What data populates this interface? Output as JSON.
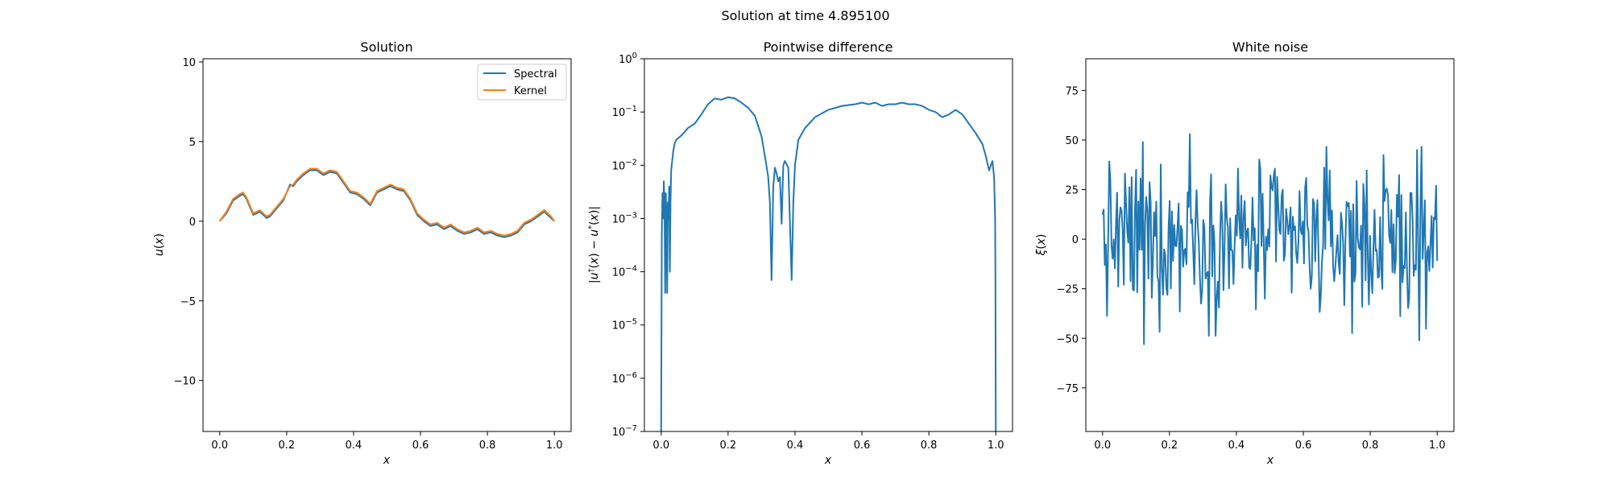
{
  "figure": {
    "suptitle": "Solution at time 4.895100"
  },
  "colors": {
    "spectral": "#1f77b4",
    "kernel": "#ff7f0e",
    "noise": "#1f77b4",
    "difference": "#1f77b4"
  },
  "chart_data": [
    {
      "type": "line",
      "title": "Solution",
      "xlabel": "x",
      "ylabel": "u(x)",
      "xlim": [
        -0.05,
        1.05
      ],
      "ylim": [
        -13.2,
        10.2
      ],
      "xticks": [
        0.0,
        0.2,
        0.4,
        0.6,
        0.8,
        1.0
      ],
      "xtick_labels": [
        "0.0",
        "0.2",
        "0.4",
        "0.6",
        "0.8",
        "1.0"
      ],
      "yticks": [
        -10,
        -5,
        0,
        5,
        10
      ],
      "ytick_labels": [
        "−10",
        "−5",
        "0",
        "5",
        "10"
      ],
      "legend": {
        "placement": "top-right",
        "entries": [
          "Spectral",
          "Kernel"
        ]
      },
      "x": [
        0.0,
        0.02,
        0.04,
        0.06,
        0.07,
        0.08,
        0.09,
        0.1,
        0.12,
        0.14,
        0.15,
        0.17,
        0.19,
        0.21,
        0.22,
        0.23,
        0.25,
        0.27,
        0.29,
        0.31,
        0.33,
        0.35,
        0.37,
        0.39,
        0.41,
        0.43,
        0.45,
        0.47,
        0.49,
        0.51,
        0.53,
        0.55,
        0.57,
        0.59,
        0.61,
        0.63,
        0.65,
        0.67,
        0.69,
        0.71,
        0.73,
        0.75,
        0.77,
        0.79,
        0.81,
        0.83,
        0.85,
        0.87,
        0.89,
        0.91,
        0.93,
        0.95,
        0.97,
        0.99,
        1.0
      ],
      "series": [
        {
          "name": "Spectral",
          "values": [
            0.0,
            0.5,
            1.3,
            1.6,
            1.7,
            1.4,
            0.9,
            0.4,
            0.6,
            0.2,
            0.3,
            0.8,
            1.3,
            2.3,
            2.2,
            2.5,
            2.9,
            3.2,
            3.2,
            2.9,
            3.1,
            3.0,
            2.4,
            1.8,
            1.7,
            1.4,
            1.0,
            1.8,
            2.0,
            2.2,
            2.0,
            1.9,
            1.3,
            0.4,
            0.0,
            -0.3,
            -0.2,
            -0.5,
            -0.3,
            -0.6,
            -0.8,
            -0.7,
            -0.5,
            -0.8,
            -0.7,
            -0.9,
            -1.0,
            -0.9,
            -0.7,
            -0.2,
            0.0,
            0.3,
            0.6,
            0.2,
            0.0
          ]
        },
        {
          "name": "Kernel",
          "values": [
            0.0,
            0.6,
            1.4,
            1.7,
            1.8,
            1.5,
            1.0,
            0.5,
            0.7,
            0.3,
            0.4,
            0.9,
            1.4,
            2.2,
            2.3,
            2.6,
            3.0,
            3.3,
            3.3,
            3.0,
            3.2,
            3.1,
            2.5,
            1.9,
            1.8,
            1.5,
            1.1,
            1.9,
            2.1,
            2.3,
            2.1,
            2.0,
            1.4,
            0.5,
            0.1,
            -0.2,
            -0.1,
            -0.4,
            -0.2,
            -0.5,
            -0.7,
            -0.6,
            -0.4,
            -0.7,
            -0.6,
            -0.8,
            -0.9,
            -0.8,
            -0.6,
            -0.1,
            0.1,
            0.4,
            0.7,
            0.3,
            0.0
          ]
        }
      ]
    },
    {
      "type": "line",
      "title": "Pointwise difference",
      "xlabel": "x",
      "ylabel": "|u†(x) − u*(x)|",
      "yscale": "log",
      "xlim": [
        -0.05,
        1.05
      ],
      "ylim": [
        1e-07,
        1
      ],
      "xticks": [
        0.0,
        0.2,
        0.4,
        0.6,
        0.8,
        1.0
      ],
      "xtick_labels": [
        "0.0",
        "0.2",
        "0.4",
        "0.6",
        "0.8",
        "1.0"
      ],
      "yticks": [
        1e-07,
        1e-06,
        1e-05,
        0.0001,
        0.001,
        0.01,
        0.1,
        1
      ],
      "ytick_labels": [
        "10^-7",
        "10^-6",
        "10^-5",
        "10^-4",
        "10^-3",
        "10^-2",
        "10^-1",
        "10^0"
      ],
      "x": [
        0.0,
        0.002,
        0.004,
        0.006,
        0.008,
        0.01,
        0.012,
        0.014,
        0.016,
        0.018,
        0.02,
        0.022,
        0.024,
        0.026,
        0.028,
        0.03,
        0.033,
        0.036,
        0.04,
        0.045,
        0.05,
        0.06,
        0.07,
        0.08,
        0.1,
        0.12,
        0.14,
        0.16,
        0.18,
        0.2,
        0.22,
        0.24,
        0.26,
        0.28,
        0.3,
        0.31,
        0.32,
        0.325,
        0.33,
        0.335,
        0.34,
        0.345,
        0.35,
        0.355,
        0.36,
        0.365,
        0.37,
        0.38,
        0.39,
        0.395,
        0.4,
        0.41,
        0.43,
        0.46,
        0.5,
        0.54,
        0.58,
        0.6,
        0.62,
        0.64,
        0.66,
        0.68,
        0.7,
        0.72,
        0.74,
        0.76,
        0.78,
        0.8,
        0.82,
        0.84,
        0.86,
        0.88,
        0.9,
        0.92,
        0.94,
        0.96,
        0.97,
        0.98,
        0.99,
        0.995,
        0.998,
        0.999,
        1.0
      ],
      "series": [
        {
          "name": "",
          "values": [
            1e-07,
            0.0005,
            0.003,
            0.001,
            0.005,
            0.002,
            4e-05,
            0.003,
            0.001,
            4e-05,
            0.002,
            0.001,
            0.004,
            0.0001,
            0.002,
            0.008,
            0.012,
            0.018,
            0.025,
            0.03,
            0.032,
            0.036,
            0.042,
            0.05,
            0.06,
            0.09,
            0.14,
            0.18,
            0.17,
            0.19,
            0.18,
            0.15,
            0.12,
            0.085,
            0.035,
            0.015,
            0.006,
            0.002,
            7e-05,
            0.004,
            0.009,
            0.007,
            0.005,
            0.006,
            0.0008,
            0.01,
            0.012,
            0.009,
            7e-05,
            0.002,
            0.01,
            0.03,
            0.05,
            0.08,
            0.11,
            0.13,
            0.14,
            0.15,
            0.14,
            0.15,
            0.13,
            0.14,
            0.14,
            0.15,
            0.14,
            0.14,
            0.13,
            0.11,
            0.1,
            0.08,
            0.09,
            0.11,
            0.09,
            0.06,
            0.04,
            0.025,
            0.015,
            0.008,
            0.012,
            0.006,
            0.001,
            7e-05,
            1e-07
          ]
        }
      ]
    },
    {
      "type": "line",
      "title": "White noise",
      "xlabel": "x",
      "ylabel": "ξ(x)",
      "xlim": [
        -0.05,
        1.05
      ],
      "ylim": [
        -97,
        91
      ],
      "xticks": [
        0.0,
        0.2,
        0.4,
        0.6,
        0.8,
        1.0
      ],
      "xtick_labels": [
        "0.0",
        "0.2",
        "0.4",
        "0.6",
        "0.8",
        "1.0"
      ],
      "yticks": [
        -75,
        -50,
        -25,
        0,
        25,
        50,
        75
      ],
      "ytick_labels": [
        "−75",
        "−50",
        "−25",
        "0",
        "25",
        "50",
        "75"
      ],
      "n_points": 300,
      "range_min": -53,
      "range_max": 53,
      "peaks": [
        {
          "x": 0.12,
          "y": 49
        },
        {
          "x": 0.125,
          "y": -53
        },
        {
          "x": 0.26,
          "y": 53
        },
        {
          "x": 0.94,
          "y": 45
        },
        {
          "x": 0.945,
          "y": -51
        }
      ]
    }
  ]
}
